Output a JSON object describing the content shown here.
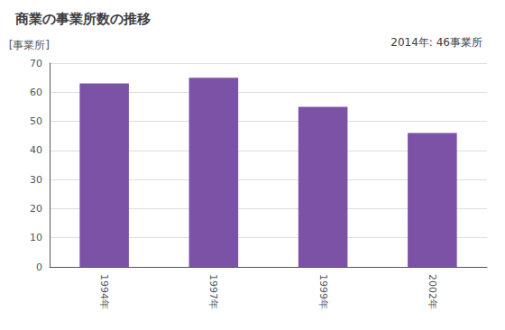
{
  "chart_data": {
    "type": "bar",
    "title": "商業の事業所数の推移",
    "ylabel": "[事業所]",
    "annotation": "2014年: 46事業所",
    "categories": [
      "1994年",
      "1997年",
      "1999年",
      "2002年"
    ],
    "values": [
      63,
      65,
      55,
      46
    ],
    "color": "#7B52A6",
    "ylim": [
      0,
      70
    ],
    "yticks": [
      0,
      10,
      20,
      30,
      40,
      50,
      60,
      70
    ],
    "grid": true
  }
}
